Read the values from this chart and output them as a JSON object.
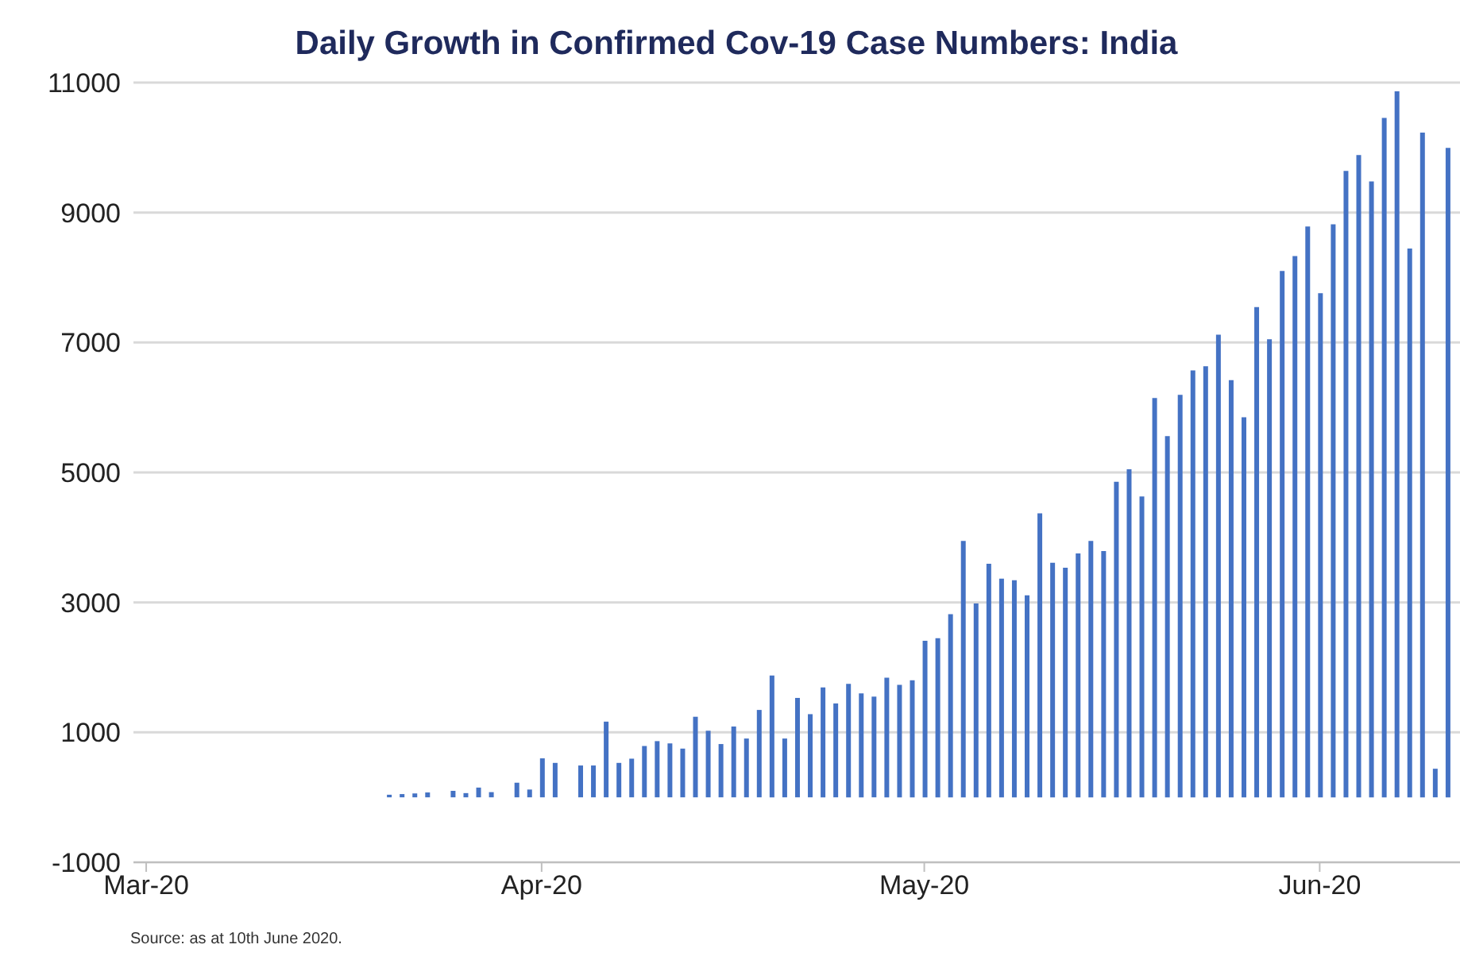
{
  "chart_data": {
    "type": "bar",
    "title": "Daily Growth in Confirmed Cov-19 Case Numbers: India",
    "annotations": [
      "Source: as at 10th June 2020."
    ],
    "x": [
      "2020-03-01",
      "2020-03-02",
      "2020-03-03",
      "2020-03-04",
      "2020-03-05",
      "2020-03-06",
      "2020-03-07",
      "2020-03-08",
      "2020-03-09",
      "2020-03-10",
      "2020-03-11",
      "2020-03-12",
      "2020-03-13",
      "2020-03-14",
      "2020-03-15",
      "2020-03-16",
      "2020-03-17",
      "2020-03-18",
      "2020-03-19",
      "2020-03-20",
      "2020-03-21",
      "2020-03-22",
      "2020-03-23",
      "2020-03-24",
      "2020-03-25",
      "2020-03-26",
      "2020-03-27",
      "2020-03-28",
      "2020-03-29",
      "2020-03-30",
      "2020-03-31",
      "2020-04-01",
      "2020-04-02",
      "2020-04-03",
      "2020-04-04",
      "2020-04-05",
      "2020-04-06",
      "2020-04-07",
      "2020-04-08",
      "2020-04-09",
      "2020-04-10",
      "2020-04-11",
      "2020-04-12",
      "2020-04-13",
      "2020-04-14",
      "2020-04-15",
      "2020-04-16",
      "2020-04-17",
      "2020-04-18",
      "2020-04-19",
      "2020-04-20",
      "2020-04-21",
      "2020-04-22",
      "2020-04-23",
      "2020-04-24",
      "2020-04-25",
      "2020-04-26",
      "2020-04-27",
      "2020-04-28",
      "2020-04-29",
      "2020-04-30",
      "2020-05-01",
      "2020-05-02",
      "2020-05-03",
      "2020-05-04",
      "2020-05-05",
      "2020-05-06",
      "2020-05-07",
      "2020-05-08",
      "2020-05-09",
      "2020-05-10",
      "2020-05-11",
      "2020-05-12",
      "2020-05-13",
      "2020-05-14",
      "2020-05-15",
      "2020-05-16",
      "2020-05-17",
      "2020-05-18",
      "2020-05-19",
      "2020-05-20",
      "2020-05-21",
      "2020-05-22",
      "2020-05-23",
      "2020-05-24",
      "2020-05-25",
      "2020-05-26",
      "2020-05-27",
      "2020-05-28",
      "2020-05-29",
      "2020-05-30",
      "2020-05-31",
      "2020-06-01",
      "2020-06-02",
      "2020-06-03",
      "2020-06-04",
      "2020-06-05",
      "2020-06-06",
      "2020-06-07",
      "2020-06-08",
      "2020-06-09",
      "2020-06-10",
      "2020-06-11"
    ],
    "values": [
      0,
      0,
      0,
      0,
      0,
      0,
      0,
      0,
      0,
      0,
      0,
      0,
      0,
      0,
      0,
      0,
      0,
      0,
      0,
      40,
      50,
      60,
      75,
      null,
      100,
      65,
      150,
      80,
      null,
      225,
      120,
      600,
      530,
      null,
      490,
      490,
      1165,
      530,
      595,
      790,
      865,
      830,
      750,
      1240,
      1025,
      820,
      1090,
      905,
      1345,
      1875,
      905,
      1530,
      1280,
      1690,
      1445,
      1745,
      1600,
      1550,
      1840,
      1730,
      1800,
      2410,
      2450,
      2820,
      3945,
      2985,
      3595,
      3365,
      3340,
      3110,
      4370,
      3610,
      3535,
      3755,
      3945,
      3790,
      4855,
      5050,
      4630,
      6145,
      5560,
      6195,
      6570,
      6635,
      7120,
      6420,
      5850,
      7545,
      7050,
      8100,
      8330,
      8785,
      7760,
      8820,
      9640,
      9885,
      9480,
      10455,
      10865,
      8445,
      10230,
      440,
      9995
    ],
    "color": "#4472c4",
    "xlim": [
      "2020-02-29",
      "2020-06-12"
    ],
    "xticks": [
      {
        "value": "2020-03-01",
        "label": "Mar-20"
      },
      {
        "value": "2020-04-01",
        "label": "Apr-20"
      },
      {
        "value": "2020-05-01",
        "label": "May-20"
      },
      {
        "value": "2020-06-01",
        "label": "Jun-20"
      }
    ],
    "ylim": [
      -1000,
      11000
    ],
    "yticks": [
      -1000,
      1000,
      3000,
      5000,
      7000,
      9000,
      11000
    ],
    "grid": "y",
    "legend": false
  }
}
